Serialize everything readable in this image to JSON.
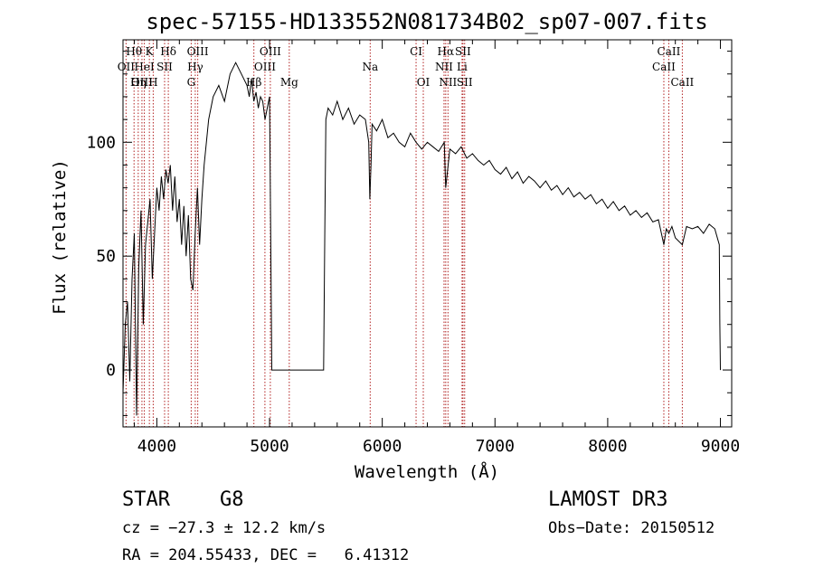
{
  "chart_data": {
    "type": "line",
    "title": "spec-57155-HD133552N081734B02_sp07-007.fits",
    "xlabel": "Wavelength (Å)",
    "ylabel": "Flux (relative)",
    "xlim": [
      3700,
      9100
    ],
    "ylim": [
      -25,
      145
    ],
    "xticks": [
      4000,
      5000,
      6000,
      7000,
      8000,
      9000
    ],
    "yticks": [
      0,
      50,
      100
    ],
    "grid": false,
    "series": [
      {
        "x": [
          3700,
          3720,
          3740,
          3760,
          3780,
          3800,
          3820,
          3840,
          3860,
          3880,
          3900,
          3920,
          3940,
          3960,
          3980,
          4000,
          4020,
          4040,
          4060,
          4080,
          4100,
          4120,
          4140,
          4160,
          4180,
          4200,
          4220,
          4240,
          4260,
          4280,
          4300,
          4320,
          4340,
          4360,
          4380,
          4400,
          4420,
          4440,
          4460,
          4480,
          4500,
          4550,
          4600,
          4650,
          4700,
          4750,
          4800,
          4820,
          4840,
          4860,
          4880,
          4900,
          4920,
          4940,
          4960,
          4980,
          5000,
          5010,
          5020,
          5040,
          5100,
          5200,
          5300,
          5400,
          5480,
          5490,
          5500,
          5520,
          5560,
          5600,
          5650,
          5700,
          5750,
          5800,
          5850,
          5880,
          5890,
          5900,
          5910,
          5950,
          6000,
          6050,
          6100,
          6150,
          6200,
          6250,
          6300,
          6350,
          6400,
          6450,
          6500,
          6550,
          6563,
          6600,
          6650,
          6700,
          6750,
          6800,
          6850,
          6900,
          6950,
          7000,
          7050,
          7100,
          7150,
          7200,
          7250,
          7300,
          7350,
          7400,
          7450,
          7500,
          7550,
          7600,
          7650,
          7700,
          7750,
          7800,
          7850,
          7900,
          7950,
          8000,
          8050,
          8100,
          8150,
          8200,
          8250,
          8300,
          8350,
          8400,
          8450,
          8498,
          8520,
          8542,
          8570,
          8600,
          8662,
          8700,
          8750,
          8800,
          8850,
          8900,
          8950,
          8990,
          8995,
          9000
        ],
        "y": [
          -10,
          20,
          30,
          -5,
          40,
          60,
          -20,
          45,
          70,
          20,
          55,
          65,
          75,
          40,
          60,
          80,
          70,
          85,
          75,
          88,
          82,
          90,
          70,
          85,
          65,
          75,
          55,
          72,
          50,
          68,
          40,
          35,
          60,
          80,
          55,
          75,
          90,
          100,
          110,
          115,
          120,
          125,
          118,
          130,
          135,
          130,
          125,
          120,
          128,
          118,
          122,
          115,
          120,
          118,
          110,
          115,
          120,
          60,
          0,
          0,
          0,
          0,
          0,
          0,
          0,
          60,
          110,
          115,
          112,
          118,
          110,
          115,
          108,
          112,
          110,
          100,
          75,
          90,
          108,
          105,
          110,
          102,
          104,
          100,
          98,
          104,
          100,
          97,
          100,
          98,
          96,
          100,
          80,
          97,
          95,
          98,
          93,
          95,
          92,
          90,
          92,
          88,
          86,
          89,
          84,
          87,
          82,
          85,
          83,
          80,
          83,
          79,
          81,
          77,
          80,
          76,
          78,
          75,
          77,
          73,
          75,
          71,
          74,
          70,
          72,
          68,
          70,
          67,
          69,
          65,
          66,
          55,
          62,
          60,
          63,
          58,
          55,
          63,
          62,
          63,
          60,
          64,
          62,
          55,
          20,
          0
        ]
      }
    ],
    "lines": [
      {
        "name": "Hθ",
        "x": 3798,
        "row": 1
      },
      {
        "name": "K",
        "x": 3934,
        "row": 1
      },
      {
        "name": "Hδ",
        "x": 4102,
        "row": 1
      },
      {
        "name": "OIII",
        "x": 4363,
        "row": 1
      },
      {
        "name": "OIII",
        "x": 5007,
        "row": 1
      },
      {
        "name": "CI",
        "x": 6300,
        "row": 1
      },
      {
        "name": "Hα",
        "x": 6563,
        "row": 1
      },
      {
        "name": "SII",
        "x": 6716,
        "row": 1
      },
      {
        "name": "CaII",
        "x": 8542,
        "row": 1
      },
      {
        "name": "OII",
        "x": 3727,
        "row": 2
      },
      {
        "name": "HeI",
        "x": 3889,
        "row": 2
      },
      {
        "name": "SII",
        "x": 4069,
        "row": 2
      },
      {
        "name": "Hγ",
        "x": 4341,
        "row": 2
      },
      {
        "name": "OIII",
        "x": 4959,
        "row": 2
      },
      {
        "name": "Na",
        "x": 5893,
        "row": 2
      },
      {
        "name": "NII",
        "x": 6548,
        "row": 2
      },
      {
        "name": "Li",
        "x": 6708,
        "row": 2
      },
      {
        "name": "CaII",
        "x": 8498,
        "row": 2
      },
      {
        "name": "OIII",
        "x": 3868,
        "row": 3
      },
      {
        "name": "Hη",
        "x": 3835,
        "row": 3
      },
      {
        "name": "H",
        "x": 3968,
        "row": 3
      },
      {
        "name": "G",
        "x": 4305,
        "row": 3
      },
      {
        "name": "Hβ",
        "x": 4861,
        "row": 3
      },
      {
        "name": "Mg",
        "x": 5175,
        "row": 3
      },
      {
        "name": "OI",
        "x": 6364,
        "row": 3
      },
      {
        "name": "NII",
        "x": 6583,
        "row": 3
      },
      {
        "name": "SII",
        "x": 6731,
        "row": 3
      },
      {
        "name": "CaII",
        "x": 8662,
        "row": 3
      }
    ]
  },
  "info": {
    "object_class": "STAR",
    "subclass": "G8",
    "survey": "LAMOST DR3",
    "cz": "cz = −27.3 ± 12.2 km/s",
    "obs_date": "Obs−Date: 20150512",
    "coords": "RA = 204.55433, DEC =   6.41312"
  }
}
